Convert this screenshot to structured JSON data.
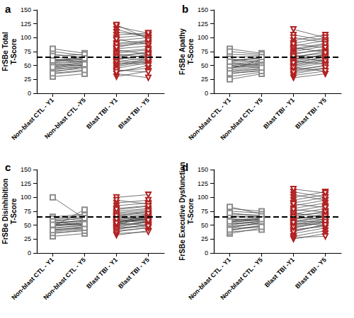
{
  "chart_data": [
    {
      "type": "scatter",
      "panel": "a",
      "ylabel": "FrSBe Total\nT-Score",
      "categories": [
        "Non-blast CTL - Y1",
        "Non-blast CTL -Y5",
        "Blast TBI - Y1",
        "Blast TBI - Y5"
      ],
      "ylim": [
        0,
        150
      ],
      "yticks": [
        0,
        25,
        50,
        75,
        100,
        125,
        150
      ],
      "grid": false,
      "threshold": 65,
      "series": [
        {
          "color": "#8c8c8c",
          "marker": "square_open",
          "values": [
            [
              45,
              52
            ],
            [
              50,
              55
            ],
            [
              55,
              58
            ],
            [
              60,
              62
            ],
            [
              38,
              48
            ],
            [
              42,
              50
            ],
            [
              65,
              60
            ],
            [
              70,
              65
            ],
            [
              75,
              68
            ],
            [
              80,
              72
            ],
            [
              35,
              40
            ],
            [
              30,
              35
            ],
            [
              48,
              55
            ],
            [
              52,
              50
            ],
            [
              58,
              60
            ],
            [
              62,
              55
            ],
            [
              44,
              47
            ],
            [
              56,
              66
            ],
            [
              40,
              45
            ],
            [
              53,
              57
            ],
            [
              67,
              70
            ],
            [
              47,
              52
            ],
            [
              36,
              42
            ],
            [
              59,
              63
            ]
          ]
        },
        {
          "color": "#b22222",
          "marker": "triangle_down_open",
          "values": [
            [
              30,
              40
            ],
            [
              35,
              28
            ],
            [
              40,
              45
            ],
            [
              45,
              55
            ],
            [
              50,
              60
            ],
            [
              55,
              52
            ],
            [
              60,
              70
            ],
            [
              65,
              75
            ],
            [
              70,
              65
            ],
            [
              75,
              80
            ],
            [
              80,
              85
            ],
            [
              85,
              90
            ],
            [
              90,
              95
            ],
            [
              95,
              100
            ],
            [
              100,
              105
            ],
            [
              105,
              108
            ],
            [
              110,
              104
            ],
            [
              115,
              100
            ],
            [
              120,
              108
            ],
            [
              123,
              98
            ],
            [
              48,
              58
            ],
            [
              52,
              62
            ],
            [
              58,
              55
            ],
            [
              62,
              68
            ],
            [
              68,
              72
            ],
            [
              72,
              78
            ],
            [
              78,
              70
            ],
            [
              88,
              92
            ],
            [
              42,
              38
            ],
            [
              38,
              50
            ],
            [
              57,
              64
            ],
            [
              64,
              60
            ],
            [
              97,
              88
            ],
            [
              82,
              95
            ]
          ]
        }
      ]
    },
    {
      "type": "scatter",
      "panel": "b",
      "ylabel": "FrSBe Apathy\nT-Score",
      "categories": [
        "Non-blast CTL - Y1",
        "Non-blast CTL - Y5",
        "Blast TBI - Y1",
        "Blast TBI - Y5"
      ],
      "ylim": [
        0,
        150
      ],
      "yticks": [
        0,
        25,
        50,
        75,
        100,
        125,
        150
      ],
      "grid": false,
      "threshold": 65,
      "series": [
        {
          "color": "#8c8c8c",
          "marker": "square_open",
          "values": [
            [
              40,
              45
            ],
            [
              45,
              50
            ],
            [
              50,
              55
            ],
            [
              55,
              60
            ],
            [
              35,
              42
            ],
            [
              30,
              38
            ],
            [
              25,
              35
            ],
            [
              60,
              62
            ],
            [
              65,
              66
            ],
            [
              70,
              68
            ],
            [
              80,
              72
            ],
            [
              75,
              70
            ],
            [
              42,
              48
            ],
            [
              48,
              52
            ],
            [
              52,
              58
            ],
            [
              58,
              64
            ],
            [
              62,
              55
            ],
            [
              38,
              44
            ],
            [
              46,
              54
            ],
            [
              54,
              50
            ],
            [
              44,
              60
            ],
            [
              36,
              40
            ],
            [
              50,
              46
            ],
            [
              57,
              65
            ]
          ]
        },
        {
          "color": "#b22222",
          "marker": "triangle_down_open",
          "values": [
            [
              28,
              35
            ],
            [
              32,
              40
            ],
            [
              35,
              45
            ],
            [
              40,
              50
            ],
            [
              45,
              55
            ],
            [
              50,
              60
            ],
            [
              55,
              65
            ],
            [
              60,
              70
            ],
            [
              65,
              75
            ],
            [
              70,
              80
            ],
            [
              75,
              85
            ],
            [
              80,
              90
            ],
            [
              85,
              95
            ],
            [
              90,
              100
            ],
            [
              95,
              105
            ],
            [
              115,
              100
            ],
            [
              105,
              95
            ],
            [
              100,
              92
            ],
            [
              48,
              58
            ],
            [
              52,
              62
            ],
            [
              58,
              52
            ],
            [
              62,
              68
            ],
            [
              68,
              64
            ],
            [
              72,
              78
            ],
            [
              42,
              50
            ],
            [
              38,
              46
            ],
            [
              57,
              70
            ],
            [
              64,
              58
            ],
            [
              78,
              88
            ],
            [
              82,
              74
            ],
            [
              46,
              40
            ],
            [
              54,
              66
            ],
            [
              88,
              82
            ],
            [
              66,
              72
            ]
          ]
        }
      ]
    },
    {
      "type": "scatter",
      "panel": "c",
      "ylabel": "FrSBe Disinhibition\nT-Score",
      "categories": [
        "Non-blast CTL - Y1",
        "Non-blast CTL - Y5",
        "Blast TBI - Y1",
        "Blast TBI - Y5"
      ],
      "ylim": [
        0,
        150
      ],
      "yticks": [
        0,
        25,
        50,
        75,
        100,
        125,
        150
      ],
      "grid": false,
      "threshold": 65,
      "series": [
        {
          "color": "#8c8c8c",
          "marker": "square_open",
          "values": [
            [
              100,
              62
            ],
            [
              45,
              50
            ],
            [
              50,
              55
            ],
            [
              55,
              58
            ],
            [
              60,
              65
            ],
            [
              65,
              70
            ],
            [
              40,
              48
            ],
            [
              35,
              42
            ],
            [
              30,
              35
            ],
            [
              48,
              52
            ],
            [
              52,
              60
            ],
            [
              58,
              62
            ],
            [
              42,
              46
            ],
            [
              38,
              44
            ],
            [
              56,
              50
            ],
            [
              62,
              68
            ],
            [
              44,
              50
            ],
            [
              47,
              78
            ],
            [
              53,
              57
            ],
            [
              36,
              40
            ],
            [
              49,
              54
            ],
            [
              57,
              63
            ],
            [
              41,
              45
            ],
            [
              51,
              52
            ]
          ]
        },
        {
          "color": "#b22222",
          "marker": "triangle_down_open",
          "values": [
            [
              32,
              40
            ],
            [
              35,
              38
            ],
            [
              40,
              45
            ],
            [
              45,
              50
            ],
            [
              50,
              55
            ],
            [
              55,
              60
            ],
            [
              60,
              65
            ],
            [
              65,
              70
            ],
            [
              70,
              75
            ],
            [
              75,
              80
            ],
            [
              80,
              85
            ],
            [
              85,
              90
            ],
            [
              90,
              95
            ],
            [
              100,
              105
            ],
            [
              95,
              88
            ],
            [
              48,
              58
            ],
            [
              52,
              62
            ],
            [
              58,
              55
            ],
            [
              62,
              68
            ],
            [
              68,
              72
            ],
            [
              72,
              78
            ],
            [
              42,
              52
            ],
            [
              38,
              46
            ],
            [
              57,
              64
            ],
            [
              64,
              60
            ],
            [
              78,
              84
            ],
            [
              54,
              50
            ],
            [
              46,
              56
            ],
            [
              44,
              48
            ],
            [
              66,
              75
            ],
            [
              56,
              62
            ],
            [
              50,
              66
            ],
            [
              60,
              58
            ],
            [
              53,
              70
            ]
          ]
        }
      ]
    },
    {
      "type": "scatter",
      "panel": "d",
      "ylabel": "FrSBe Executive Dysfunction\nT-Score",
      "categories": [
        "Non-blast CTL - Y1",
        "Non-blast CTL - Y5",
        "Blast TBI -Y1",
        "Blast TBI - Y5"
      ],
      "ylim": [
        0,
        150
      ],
      "yticks": [
        0,
        25,
        50,
        75,
        100,
        125,
        150
      ],
      "grid": false,
      "threshold": 65,
      "series": [
        {
          "color": "#8c8c8c",
          "marker": "square_open",
          "values": [
            [
              40,
              50
            ],
            [
              45,
              55
            ],
            [
              50,
              58
            ],
            [
              55,
              60
            ],
            [
              60,
              62
            ],
            [
              65,
              64
            ],
            [
              70,
              68
            ],
            [
              75,
              72
            ],
            [
              80,
              75
            ],
            [
              83,
              70
            ],
            [
              35,
              45
            ],
            [
              38,
              42
            ],
            [
              48,
              52
            ],
            [
              52,
              55
            ],
            [
              58,
              63
            ],
            [
              62,
              58
            ],
            [
              44,
              48
            ],
            [
              56,
              60
            ],
            [
              67,
              65
            ],
            [
              72,
              66
            ],
            [
              47,
              54
            ],
            [
              53,
              57
            ],
            [
              42,
              47
            ],
            [
              57,
              61
            ]
          ]
        },
        {
          "color": "#b22222",
          "marker": "triangle_down_open",
          "values": [
            [
              25,
              35
            ],
            [
              28,
              30
            ],
            [
              30,
              40
            ],
            [
              35,
              45
            ],
            [
              40,
              50
            ],
            [
              45,
              55
            ],
            [
              50,
              60
            ],
            [
              55,
              65
            ],
            [
              60,
              70
            ],
            [
              65,
              75
            ],
            [
              70,
              80
            ],
            [
              75,
              85
            ],
            [
              80,
              90
            ],
            [
              85,
              95
            ],
            [
              90,
              100
            ],
            [
              95,
              105
            ],
            [
              100,
              110
            ],
            [
              105,
              95
            ],
            [
              110,
              100
            ],
            [
              115,
              108
            ],
            [
              48,
              58
            ],
            [
              52,
              62
            ],
            [
              58,
              55
            ],
            [
              62,
              68
            ],
            [
              68,
              72
            ],
            [
              72,
              64
            ],
            [
              42,
              48
            ],
            [
              38,
              52
            ],
            [
              57,
              66
            ],
            [
              64,
              60
            ],
            [
              78,
              74
            ],
            [
              88,
              82
            ],
            [
              46,
              56
            ],
            [
              54,
              50
            ]
          ]
        }
      ]
    }
  ]
}
